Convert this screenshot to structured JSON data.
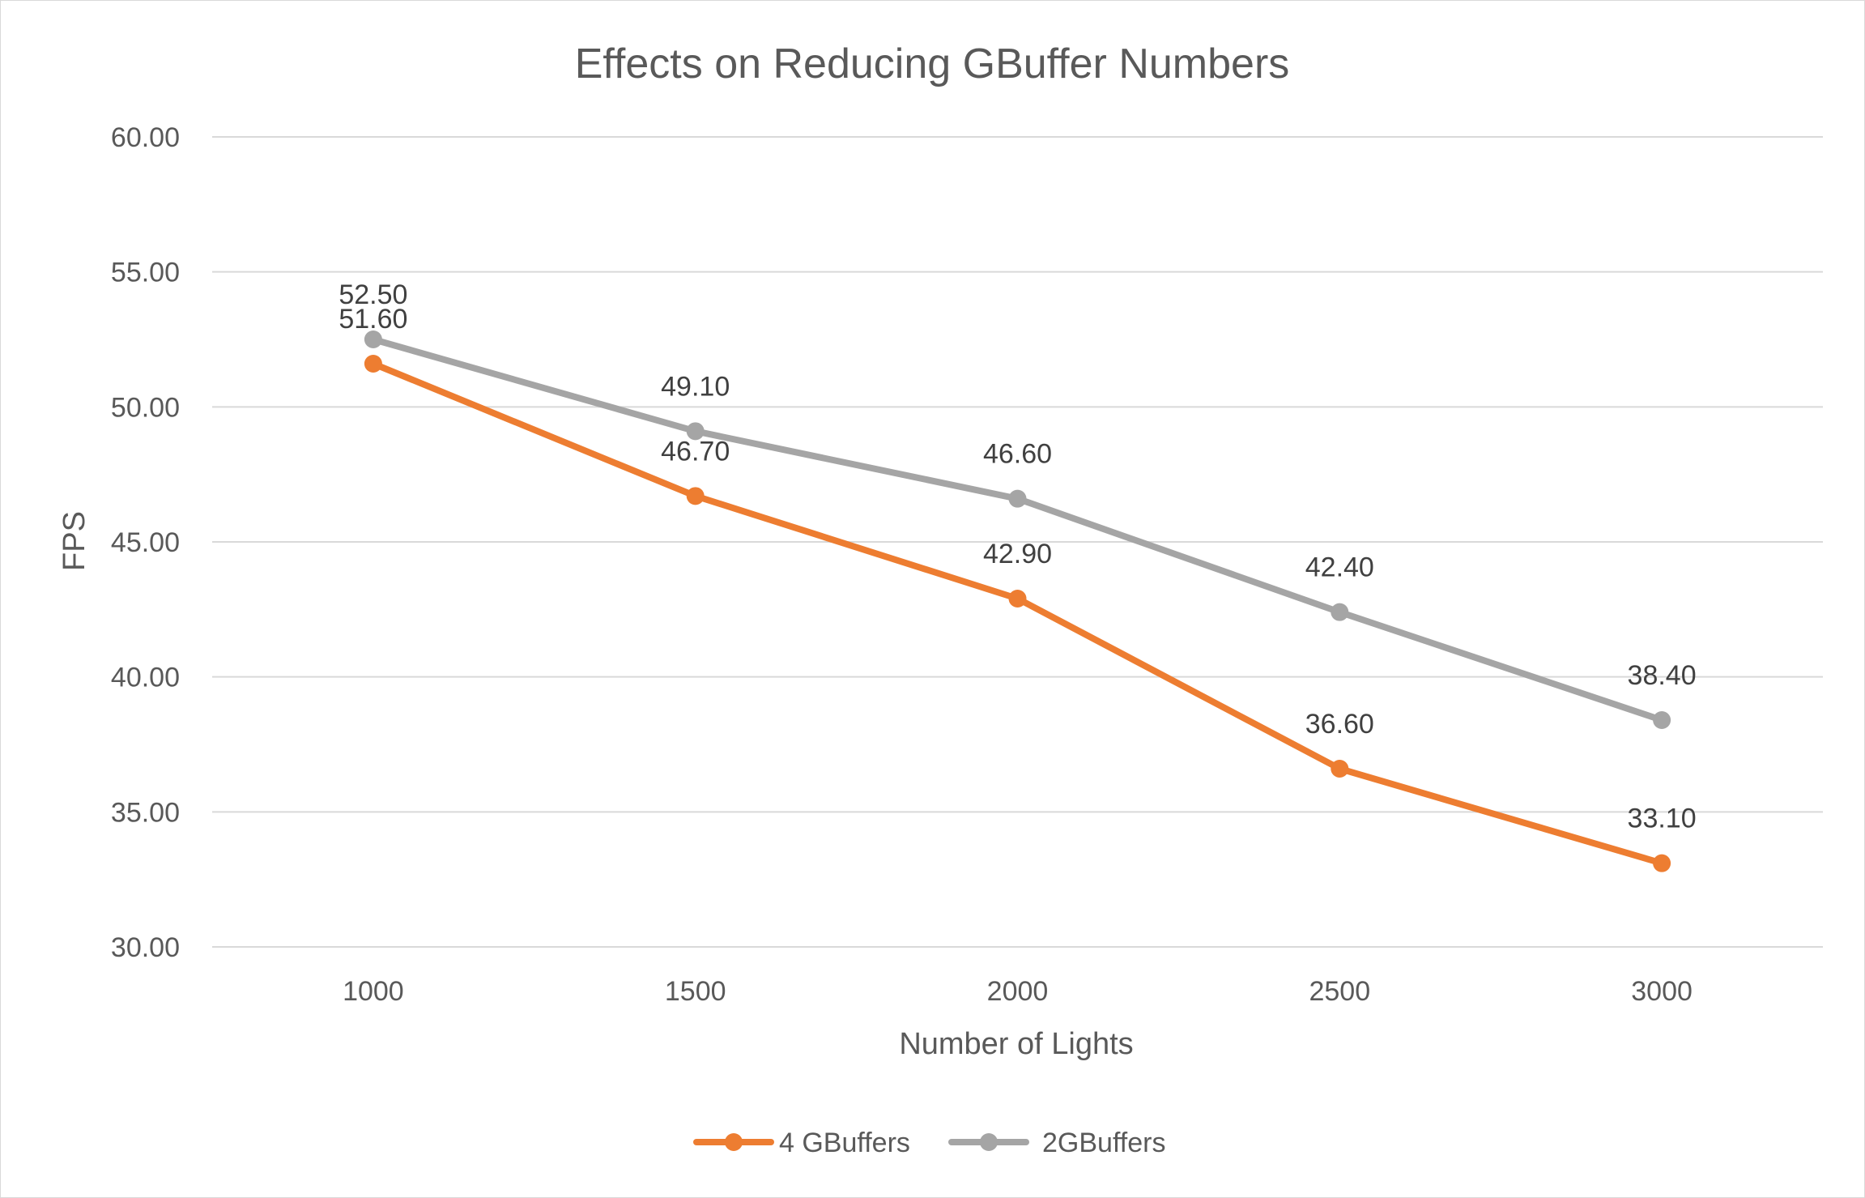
{
  "chart_data": {
    "type": "line",
    "title": "Effects on Reducing GBuffer Numbers",
    "xlabel": "Number of Lights",
    "ylabel": "FPS",
    "categories": [
      "1000",
      "1500",
      "2000",
      "2500",
      "3000"
    ],
    "ylim": [
      30,
      60
    ],
    "yticks": [
      "30.00",
      "35.00",
      "40.00",
      "45.00",
      "50.00",
      "55.00",
      "60.00"
    ],
    "grid": true,
    "legend_position": "bottom",
    "series": [
      {
        "name": "4 GBuffers",
        "color": "#ED7D31",
        "values": [
          51.6,
          46.7,
          42.9,
          36.6,
          33.1
        ],
        "labels": [
          "51.60",
          "46.70",
          "42.90",
          "36.60",
          "33.10"
        ]
      },
      {
        "name": "2GBuffers",
        "color": "#A5A5A5",
        "values": [
          52.5,
          49.1,
          46.6,
          42.4,
          38.4
        ],
        "labels": [
          "52.50",
          "49.10",
          "46.60",
          "42.40",
          "38.40"
        ]
      }
    ]
  }
}
